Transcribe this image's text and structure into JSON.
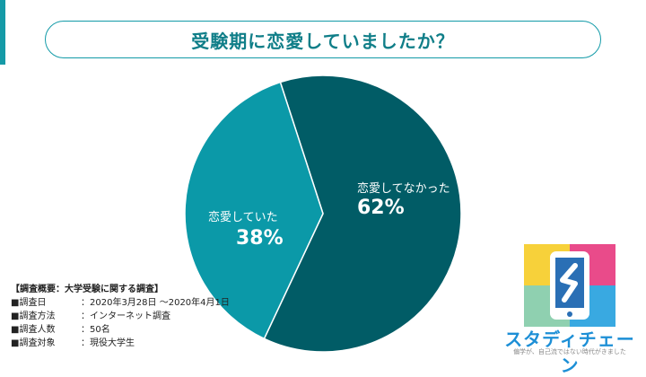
{
  "title": "受験期に恋愛していましたか？",
  "colors": {
    "accent": "#159aa7",
    "slice_no": "#015c66",
    "slice_yes": "#0b99a8",
    "title_text": "#0f7e88"
  },
  "chart_data": {
    "type": "pie",
    "title": "受験期に恋愛していましたか？",
    "slices": [
      {
        "label": "恋愛してなかった",
        "value": 62,
        "display": "62%"
      },
      {
        "label": "恋愛していた",
        "value": 38,
        "display": "38%"
      }
    ]
  },
  "survey": {
    "heading": "【調査概要：大学受験に関する調査】",
    "rows": [
      {
        "key": "■調査日",
        "value": "：2020年3月28日 〜2020年4月1日"
      },
      {
        "key": "■調査方法",
        "value": "：インターネット調査"
      },
      {
        "key": "■調査人数",
        "value": "：50名"
      },
      {
        "key": "■調査対象",
        "value": "：現役大学生"
      }
    ]
  },
  "logo": {
    "name": "スタディチェーン",
    "tagline": "偏学が、自己流ではない時代がきました",
    "icon": "phone-icon",
    "colors": [
      "#e94b8a",
      "#f7d13a",
      "#8fd0b0",
      "#39a9e1"
    ]
  }
}
